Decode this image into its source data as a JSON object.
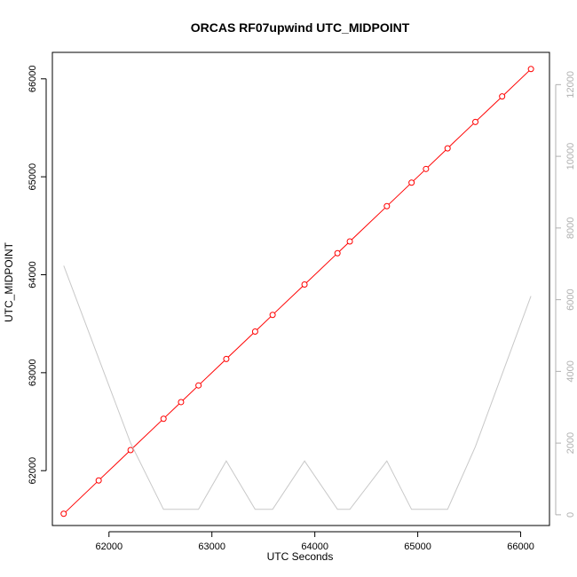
{
  "chart_data": {
    "type": "line",
    "title": "ORCAS RF07upwind UTC_MIDPOINT",
    "xlabel": "UTC Seconds",
    "ylabel": "UTC_MIDPOINT",
    "xlim": [
      61450,
      66280
    ],
    "ylim": [
      61440,
      66270
    ],
    "y2lim": [
      -300,
      12900
    ],
    "x_ticks": [
      62000,
      63000,
      64000,
      65000,
      66000
    ],
    "y_ticks": [
      62000,
      63000,
      64000,
      65000,
      66000
    ],
    "y2_ticks": [
      0,
      2000,
      4000,
      6000,
      8000,
      10000,
      12000
    ],
    "grid": false,
    "series": [
      {
        "axis": "left",
        "style": "line-with-open-circles",
        "color": "#ff0000",
        "points": [
          [
            61560,
            61560
          ],
          [
            61900,
            61900
          ],
          [
            62210,
            62210
          ],
          [
            62530,
            62530
          ],
          [
            62700,
            62700
          ],
          [
            62870,
            62870
          ],
          [
            63140,
            63140
          ],
          [
            63420,
            63420
          ],
          [
            63590,
            63590
          ],
          [
            63900,
            63900
          ],
          [
            64220,
            64220
          ],
          [
            64340,
            64340
          ],
          [
            64700,
            64700
          ],
          [
            64940,
            64940
          ],
          [
            65080,
            65080
          ],
          [
            65290,
            65290
          ],
          [
            65560,
            65560
          ],
          [
            65820,
            65820
          ],
          [
            66100,
            66100
          ]
        ]
      },
      {
        "axis": "right",
        "style": "line",
        "color": "#c8c8c8",
        "points": [
          [
            61560,
            6950
          ],
          [
            62210,
            2000
          ],
          [
            62530,
            150
          ],
          [
            62870,
            150
          ],
          [
            63140,
            1500
          ],
          [
            63420,
            150
          ],
          [
            63590,
            150
          ],
          [
            63900,
            1500
          ],
          [
            64220,
            150
          ],
          [
            64340,
            150
          ],
          [
            64700,
            1500
          ],
          [
            64940,
            150
          ],
          [
            65290,
            150
          ],
          [
            65560,
            1900
          ],
          [
            66100,
            6100
          ]
        ]
      }
    ]
  }
}
